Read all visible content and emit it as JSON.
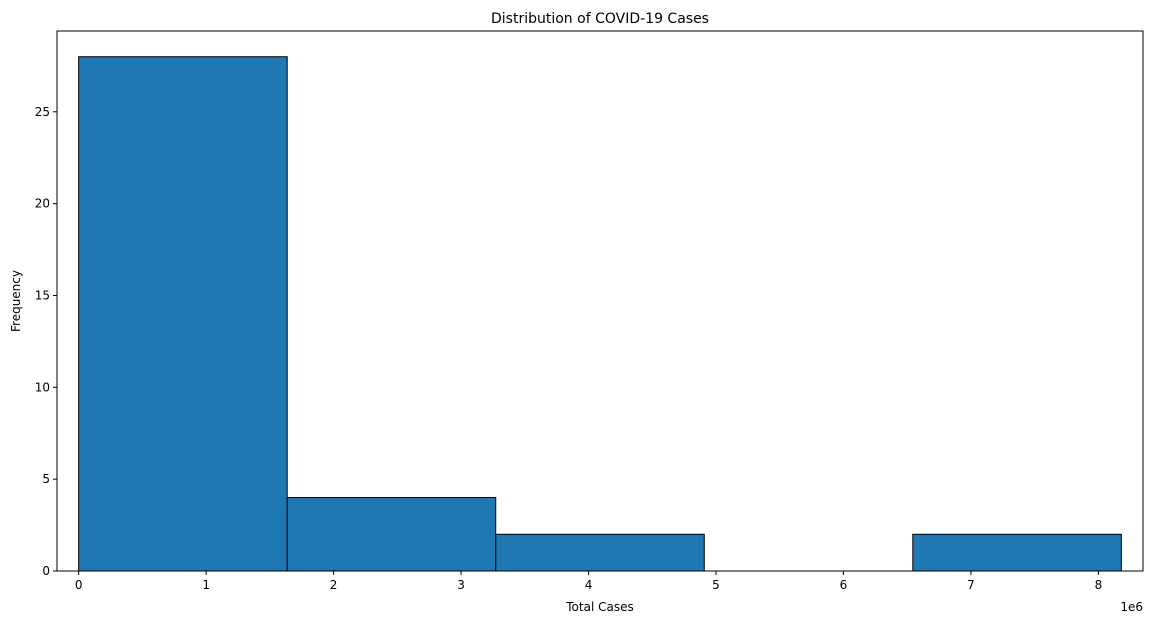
{
  "chart_data": {
    "type": "bar",
    "subtype": "histogram",
    "title": "Distribution of COVID-19 Cases",
    "xlabel": "Total Cases",
    "ylabel": "Frequency",
    "x_offset_label": "1e6",
    "bin_edges": [
      0,
      1636000,
      3272000,
      4908000,
      6544000,
      8180000
    ],
    "values": [
      28,
      4,
      2,
      0,
      2
    ],
    "xlim": [
      -170000,
      8350000
    ],
    "ylim": [
      0,
      29.4
    ],
    "x_ticks": [
      0,
      1,
      2,
      3,
      4,
      5,
      6,
      7,
      8
    ],
    "y_ticks": [
      0,
      5,
      10,
      15,
      20,
      25
    ],
    "bar_color": "#1f77b4",
    "edge_color": "#000000",
    "grid": false,
    "legend": false
  }
}
